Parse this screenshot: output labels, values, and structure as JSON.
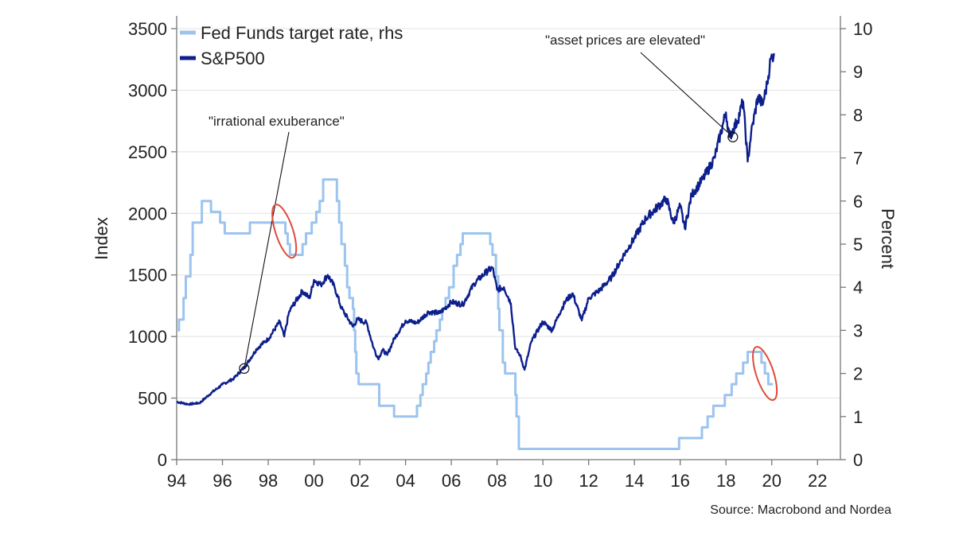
{
  "chart_data": {
    "type": "line",
    "title": "",
    "xlabel": "",
    "ylabel_left": "Index",
    "ylabel_right": "Percent",
    "x_ticks": [
      "94",
      "96",
      "98",
      "00",
      "02",
      "04",
      "06",
      "08",
      "10",
      "12",
      "14",
      "16",
      "18",
      "20",
      "22"
    ],
    "x_range": [
      1994,
      2023
    ],
    "y_left_range": [
      0,
      3500
    ],
    "y_left_ticks": [
      0,
      500,
      1000,
      1500,
      2000,
      2500,
      3000,
      3500
    ],
    "y_right_range": [
      0,
      10
    ],
    "y_right_ticks": [
      0,
      1,
      2,
      3,
      4,
      5,
      6,
      7,
      8,
      9,
      10
    ],
    "grid": "horizontal",
    "legend_position": "top-left",
    "series": [
      {
        "name": "Fed Funds target rate, rhs",
        "axis": "right",
        "color": "#9cc4ee",
        "step": true,
        "points": [
          [
            1994.0,
            3.0
          ],
          [
            1994.1,
            3.25
          ],
          [
            1994.3,
            3.75
          ],
          [
            1994.4,
            4.25
          ],
          [
            1994.6,
            4.75
          ],
          [
            1994.7,
            5.5
          ],
          [
            1995.1,
            6.0
          ],
          [
            1995.5,
            5.75
          ],
          [
            1995.9,
            5.5
          ],
          [
            1996.1,
            5.25
          ],
          [
            1997.2,
            5.5
          ],
          [
            1998.75,
            5.25
          ],
          [
            1998.85,
            5.0
          ],
          [
            1998.95,
            4.75
          ],
          [
            1999.5,
            5.0
          ],
          [
            1999.65,
            5.25
          ],
          [
            1999.9,
            5.5
          ],
          [
            2000.1,
            5.75
          ],
          [
            2000.25,
            6.0
          ],
          [
            2000.4,
            6.5
          ],
          [
            2001.0,
            6.0
          ],
          [
            2001.1,
            5.5
          ],
          [
            2001.2,
            5.0
          ],
          [
            2001.35,
            4.5
          ],
          [
            2001.45,
            4.0
          ],
          [
            2001.55,
            3.75
          ],
          [
            2001.7,
            3.5
          ],
          [
            2001.75,
            3.0
          ],
          [
            2001.8,
            2.5
          ],
          [
            2001.85,
            2.0
          ],
          [
            2001.95,
            1.75
          ],
          [
            2002.85,
            1.25
          ],
          [
            2003.5,
            1.0
          ],
          [
            2004.5,
            1.25
          ],
          [
            2004.65,
            1.5
          ],
          [
            2004.75,
            1.75
          ],
          [
            2004.9,
            2.0
          ],
          [
            2005.0,
            2.25
          ],
          [
            2005.1,
            2.5
          ],
          [
            2005.25,
            2.75
          ],
          [
            2005.35,
            3.0
          ],
          [
            2005.5,
            3.25
          ],
          [
            2005.6,
            3.5
          ],
          [
            2005.75,
            3.75
          ],
          [
            2005.9,
            4.0
          ],
          [
            2006.1,
            4.5
          ],
          [
            2006.25,
            4.75
          ],
          [
            2006.4,
            5.0
          ],
          [
            2006.5,
            5.25
          ],
          [
            2007.7,
            5.0
          ],
          [
            2007.8,
            4.75
          ],
          [
            2007.95,
            4.25
          ],
          [
            2008.05,
            3.5
          ],
          [
            2008.1,
            3.0
          ],
          [
            2008.25,
            2.25
          ],
          [
            2008.35,
            2.0
          ],
          [
            2008.8,
            1.5
          ],
          [
            2008.85,
            1.0
          ],
          [
            2008.95,
            0.25
          ],
          [
            2015.95,
            0.5
          ],
          [
            2016.95,
            0.75
          ],
          [
            2017.2,
            1.0
          ],
          [
            2017.45,
            1.25
          ],
          [
            2017.95,
            1.5
          ],
          [
            2018.25,
            1.75
          ],
          [
            2018.45,
            2.0
          ],
          [
            2018.75,
            2.25
          ],
          [
            2018.95,
            2.5
          ],
          [
            2019.55,
            2.25
          ],
          [
            2019.7,
            2.0
          ],
          [
            2019.85,
            1.75
          ],
          [
            2020.05,
            1.75
          ]
        ]
      },
      {
        "name": "S&P500",
        "axis": "left",
        "color": "#0d1f8c",
        "step": false,
        "points": [
          [
            1994.0,
            470
          ],
          [
            1994.5,
            450
          ],
          [
            1995.0,
            460
          ],
          [
            1995.5,
            540
          ],
          [
            1996.0,
            610
          ],
          [
            1996.5,
            660
          ],
          [
            1997.0,
            760
          ],
          [
            1997.5,
            900
          ],
          [
            1997.8,
            950
          ],
          [
            1998.0,
            980
          ],
          [
            1998.5,
            1120
          ],
          [
            1998.7,
            1000
          ],
          [
            1998.9,
            1190
          ],
          [
            1999.0,
            1230
          ],
          [
            1999.5,
            1370
          ],
          [
            1999.8,
            1310
          ],
          [
            2000.0,
            1460
          ],
          [
            2000.3,
            1420
          ],
          [
            2000.6,
            1500
          ],
          [
            2000.9,
            1400
          ],
          [
            2001.2,
            1230
          ],
          [
            2001.7,
            1080
          ],
          [
            2001.9,
            1140
          ],
          [
            2002.3,
            1110
          ],
          [
            2002.6,
            910
          ],
          [
            2002.8,
            820
          ],
          [
            2003.0,
            890
          ],
          [
            2003.2,
            850
          ],
          [
            2003.5,
            980
          ],
          [
            2004.0,
            1130
          ],
          [
            2004.5,
            1110
          ],
          [
            2005.0,
            1200
          ],
          [
            2005.5,
            1190
          ],
          [
            2006.0,
            1280
          ],
          [
            2006.5,
            1260
          ],
          [
            2007.0,
            1430
          ],
          [
            2007.5,
            1520
          ],
          [
            2007.8,
            1560
          ],
          [
            2008.0,
            1380
          ],
          [
            2008.3,
            1400
          ],
          [
            2008.6,
            1270
          ],
          [
            2008.8,
            900
          ],
          [
            2009.0,
            850
          ],
          [
            2009.2,
            730
          ],
          [
            2009.5,
            960
          ],
          [
            2010.0,
            1120
          ],
          [
            2010.4,
            1050
          ],
          [
            2010.7,
            1180
          ],
          [
            2011.0,
            1290
          ],
          [
            2011.3,
            1350
          ],
          [
            2011.7,
            1130
          ],
          [
            2012.0,
            1310
          ],
          [
            2012.5,
            1380
          ],
          [
            2013.0,
            1480
          ],
          [
            2013.5,
            1650
          ],
          [
            2014.0,
            1800
          ],
          [
            2014.5,
            1960
          ],
          [
            2015.0,
            2050
          ],
          [
            2015.4,
            2120
          ],
          [
            2015.7,
            1920
          ],
          [
            2016.0,
            2060
          ],
          [
            2016.2,
            1880
          ],
          [
            2016.5,
            2150
          ],
          [
            2017.0,
            2280
          ],
          [
            2017.5,
            2450
          ],
          [
            2018.0,
            2820
          ],
          [
            2018.15,
            2620
          ],
          [
            2018.5,
            2750
          ],
          [
            2018.75,
            2910
          ],
          [
            2018.95,
            2420
          ],
          [
            2019.1,
            2650
          ],
          [
            2019.4,
            2950
          ],
          [
            2019.6,
            2880
          ],
          [
            2019.8,
            3050
          ],
          [
            2019.95,
            3250
          ],
          [
            2020.1,
            3300
          ]
        ]
      }
    ],
    "annotations": [
      {
        "text": "\"irrational exuberance\"",
        "x": 1996.95,
        "y": 740,
        "axis": "left"
      },
      {
        "text": "\"asset prices are elevated\"",
        "x": 2018.3,
        "y": 2620,
        "axis": "left"
      }
    ],
    "highlight_ellipses": [
      {
        "x": 1998.7,
        "y": 5.3,
        "axis": "right"
      },
      {
        "x": 2019.7,
        "y": 2.0,
        "axis": "right"
      }
    ],
    "source": "Source: Macrobond and Nordea"
  }
}
